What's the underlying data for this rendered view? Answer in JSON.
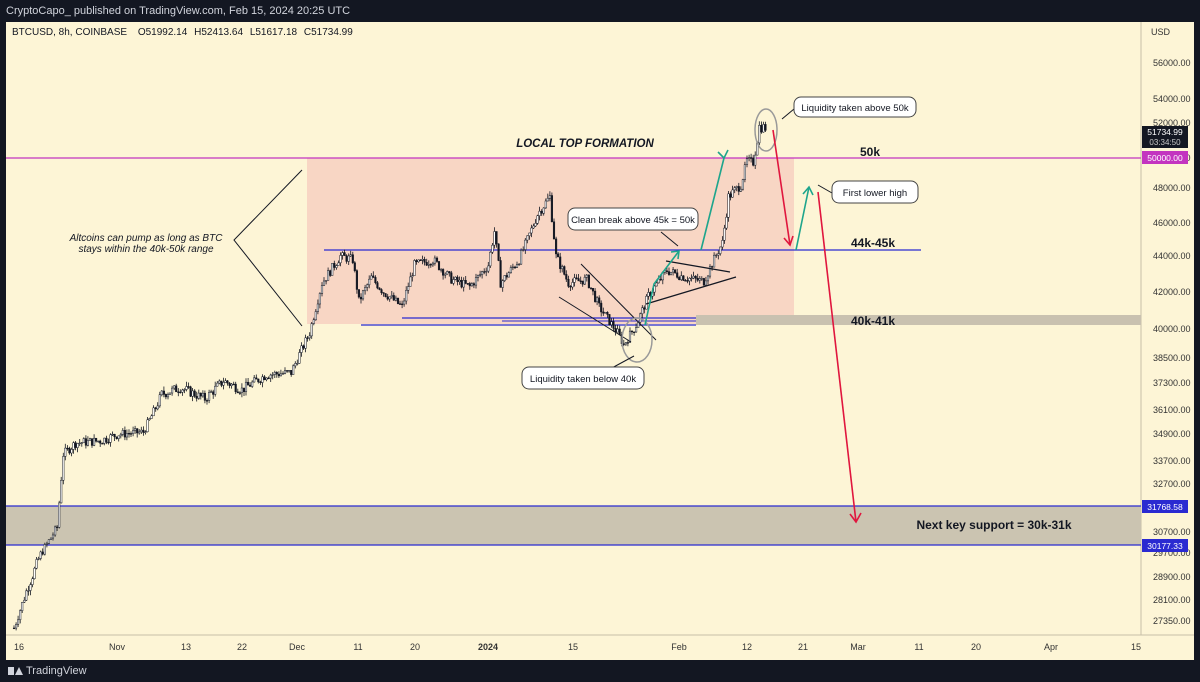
{
  "header": {
    "publisher": "CryptoCapo_ published on TradingView.com, Feb 15, 2024 20:25 UTC"
  },
  "footer": {
    "brand": "TradingView"
  },
  "chart_data": {
    "type": "candlestick",
    "symbol_line": "BTCUSD, 8h, COINBASE",
    "ohlc": {
      "open": "O51992.14",
      "high": "H52413.64",
      "low": "L51617.18",
      "close": "C51734.99"
    },
    "currency": "USD",
    "y_ticks": [
      56000,
      54000,
      52000,
      50000,
      48000,
      46000,
      44000,
      42000,
      40000,
      38500,
      37300,
      36100,
      34900,
      33700,
      32700,
      30700,
      29700,
      28900,
      28100,
      27350
    ],
    "y_tick_labels": [
      "56000.00",
      "54000.00",
      "52000.00",
      "50000.00",
      "48000.00",
      "46000.00",
      "44000.00",
      "42000.00",
      "40000.00",
      "38500.00",
      "37300.00",
      "36100.00",
      "34900.00",
      "33700.00",
      "32700.00",
      "30700.00",
      "29700.00",
      "28900.00",
      "28100.00",
      "27350.00"
    ],
    "x_ticks": [
      "16",
      "Nov",
      "13",
      "22",
      "Dec",
      "11",
      "20",
      "2024",
      "15",
      "Feb",
      "12",
      "21",
      "Mar",
      "11",
      "20",
      "Apr",
      "15"
    ],
    "last_price_label": "51734.99",
    "countdown_label": "03:34:50",
    "level_labels": [
      "50000.00",
      "31768.58",
      "30177.33"
    ],
    "price_path": [
      [
        "2023-10-16",
        27100
      ],
      [
        "2023-10-18",
        28400
      ],
      [
        "2023-10-20",
        29500
      ],
      [
        "2023-10-23",
        30900
      ],
      [
        "2023-10-24",
        34000
      ],
      [
        "2023-10-26",
        34500
      ],
      [
        "2023-10-30",
        34600
      ],
      [
        "2023-11-02",
        34900
      ],
      [
        "2023-11-06",
        35000
      ],
      [
        "2023-11-09",
        36800
      ],
      [
        "2023-11-12",
        37100
      ],
      [
        "2023-11-16",
        36600
      ],
      [
        "2023-11-19",
        37400
      ],
      [
        "2023-11-22",
        37000
      ],
      [
        "2023-11-26",
        37700
      ],
      [
        "2023-11-30",
        37800
      ],
      [
        "2023-12-03",
        39800
      ],
      [
        "2023-12-05",
        42500
      ],
      [
        "2023-12-08",
        44000
      ],
      [
        "2023-12-10",
        43800
      ],
      [
        "2023-12-11",
        41500
      ],
      [
        "2023-12-13",
        42800
      ],
      [
        "2023-12-15",
        42000
      ],
      [
        "2023-12-18",
        41200
      ],
      [
        "2023-12-20",
        43500
      ],
      [
        "2023-12-23",
        43800
      ],
      [
        "2023-12-26",
        42700
      ],
      [
        "2023-12-29",
        42300
      ],
      [
        "2024-01-01",
        43500
      ],
      [
        "2024-01-02",
        45500
      ],
      [
        "2024-01-03",
        42500
      ],
      [
        "2024-01-06",
        43800
      ],
      [
        "2024-01-09",
        46500
      ],
      [
        "2024-01-11",
        47500
      ],
      [
        "2024-01-12",
        44000
      ],
      [
        "2024-01-14",
        42500
      ],
      [
        "2024-01-17",
        42700
      ],
      [
        "2024-01-19",
        41200
      ],
      [
        "2024-01-22",
        39800
      ],
      [
        "2024-01-23",
        39200
      ],
      [
        "2024-01-25",
        40200
      ],
      [
        "2024-01-27",
        41800
      ],
      [
        "2024-01-30",
        43200
      ],
      [
        "2024-02-02",
        42800
      ],
      [
        "2024-02-05",
        42600
      ],
      [
        "2024-02-08",
        44800
      ],
      [
        "2024-02-09",
        47500
      ],
      [
        "2024-02-11",
        48200
      ],
      [
        "2024-02-12",
        49800
      ],
      [
        "2024-02-13",
        49700
      ],
      [
        "2024-02-14",
        51800
      ],
      [
        "2024-02-15",
        51734
      ]
    ],
    "annotations": {
      "title": "LOCAL TOP FORMATION",
      "altcoin_note_1": "Altcoins can pump as long as BTC",
      "altcoin_note_2": "stays within the 40k-50k range",
      "liq_above": "Liquidity taken above 50k",
      "clean_break": "Clean break above 45k = 50k",
      "liq_below": "Liquidity taken below 40k",
      "first_lower_high": "First lower high",
      "label_50k": "50k",
      "label_44_45k": "44k-45k",
      "label_40_41k": "40k-41k",
      "next_support": "Next key support = 30k-31k"
    },
    "colors": {
      "background": "#fdf5d6",
      "range_box": "#f8d6c4",
      "magenta_line": "#c334c0",
      "blue_line": "#2a2ad1",
      "grey_band": "#c9c1b0",
      "red_arrow": "#e0163e",
      "green_arrow": "#1ea58c"
    }
  }
}
